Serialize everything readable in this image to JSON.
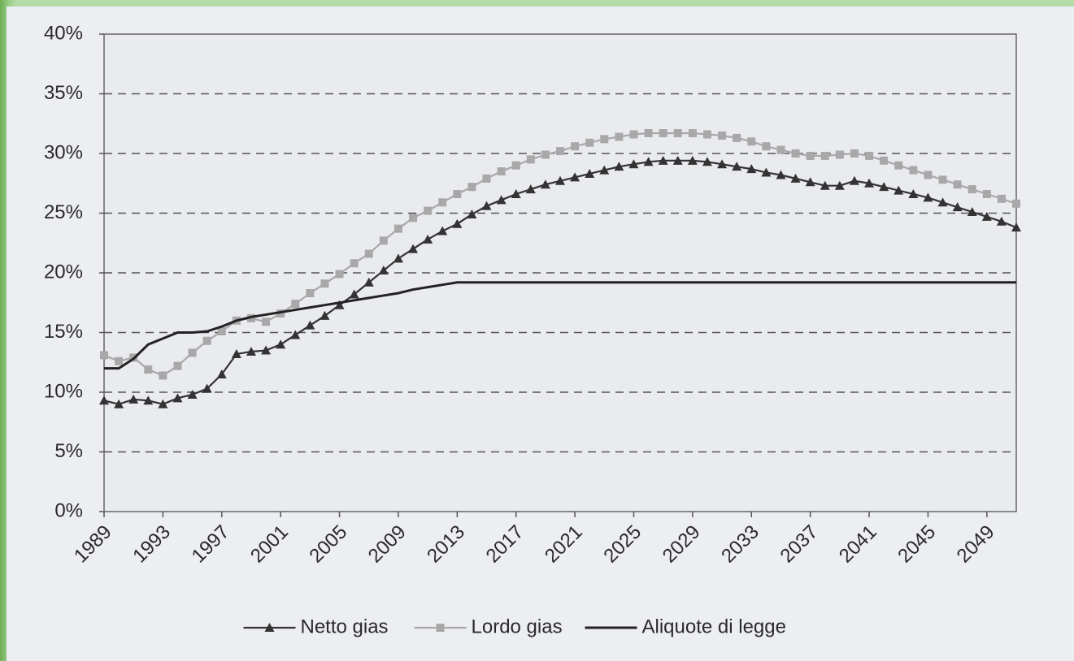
{
  "chart_data": {
    "type": "line",
    "x": [
      1989,
      1990,
      1991,
      1992,
      1993,
      1994,
      1995,
      1996,
      1997,
      1998,
      1999,
      2000,
      2001,
      2002,
      2003,
      2004,
      2005,
      2006,
      2007,
      2008,
      2009,
      2010,
      2011,
      2012,
      2013,
      2014,
      2015,
      2016,
      2017,
      2018,
      2019,
      2020,
      2021,
      2022,
      2023,
      2024,
      2025,
      2026,
      2027,
      2028,
      2029,
      2030,
      2031,
      2032,
      2033,
      2034,
      2035,
      2036,
      2037,
      2038,
      2039,
      2040,
      2041,
      2042,
      2043,
      2044,
      2045,
      2046,
      2047,
      2048,
      2049,
      2050,
      2051
    ],
    "series": [
      {
        "name": "Netto gias",
        "color": "#333333",
        "marker": "triangle",
        "values": [
          9.3,
          9.0,
          9.4,
          9.3,
          9.0,
          9.5,
          9.8,
          10.3,
          11.5,
          13.2,
          13.4,
          13.5,
          14.0,
          14.8,
          15.6,
          16.4,
          17.3,
          18.2,
          19.2,
          20.2,
          21.2,
          22.0,
          22.8,
          23.5,
          24.1,
          24.9,
          25.6,
          26.1,
          26.6,
          27.0,
          27.4,
          27.7,
          28.0,
          28.3,
          28.6,
          28.9,
          29.1,
          29.3,
          29.4,
          29.4,
          29.4,
          29.3,
          29.1,
          28.9,
          28.7,
          28.4,
          28.2,
          27.9,
          27.6,
          27.3,
          27.3,
          27.7,
          27.5,
          27.2,
          26.9,
          26.6,
          26.3,
          25.9,
          25.5,
          25.1,
          24.7,
          24.3,
          23.8
        ]
      },
      {
        "name": "Lordo gias",
        "color": "#a8a8a8",
        "marker": "square",
        "values": [
          13.1,
          12.6,
          12.9,
          11.9,
          11.4,
          12.2,
          13.3,
          14.3,
          15.1,
          16.0,
          16.2,
          15.9,
          16.6,
          17.4,
          18.3,
          19.1,
          19.9,
          20.8,
          21.6,
          22.7,
          23.7,
          24.6,
          25.2,
          25.9,
          26.6,
          27.2,
          27.9,
          28.5,
          29.0,
          29.5,
          29.9,
          30.2,
          30.6,
          30.9,
          31.2,
          31.4,
          31.6,
          31.7,
          31.7,
          31.7,
          31.7,
          31.6,
          31.5,
          31.3,
          31.0,
          30.6,
          30.3,
          30.0,
          29.8,
          29.8,
          29.9,
          30.0,
          29.8,
          29.4,
          29.0,
          28.6,
          28.2,
          27.8,
          27.4,
          27.0,
          26.6,
          26.2,
          25.8
        ]
      },
      {
        "name": "Aliquote di legge",
        "color": "#222222",
        "marker": "none",
        "values": [
          12.0,
          12.0,
          12.8,
          14.0,
          14.5,
          15.0,
          15.0,
          15.1,
          15.5,
          16.0,
          16.3,
          16.5,
          16.7,
          16.9,
          17.1,
          17.3,
          17.5,
          17.7,
          17.9,
          18.1,
          18.3,
          18.6,
          18.8,
          19.0,
          19.2,
          19.2,
          19.2,
          19.2,
          19.2,
          19.2,
          19.2,
          19.2,
          19.2,
          19.2,
          19.2,
          19.2,
          19.2,
          19.2,
          19.2,
          19.2,
          19.2,
          19.2,
          19.2,
          19.2,
          19.2,
          19.2,
          19.2,
          19.2,
          19.2,
          19.2,
          19.2,
          19.2,
          19.2,
          19.2,
          19.2,
          19.2,
          19.2,
          19.2,
          19.2,
          19.2,
          19.2,
          19.2,
          19.2
        ]
      }
    ],
    "xlim": [
      1989,
      2051
    ],
    "xticks": [
      1989,
      1993,
      1997,
      2001,
      2005,
      2009,
      2013,
      2017,
      2021,
      2025,
      2029,
      2033,
      2037,
      2041,
      2045,
      2049
    ],
    "ylim": [
      0,
      40
    ],
    "yticks": [
      {
        "value": 0,
        "label": "0%"
      },
      {
        "value": 5,
        "label": "5%"
      },
      {
        "value": 10,
        "label": "10%"
      },
      {
        "value": 15,
        "label": "15%"
      },
      {
        "value": 20,
        "label": "20%"
      },
      {
        "value": 25,
        "label": "25%"
      },
      {
        "value": 30,
        "label": "30%"
      },
      {
        "value": 35,
        "label": "35%"
      },
      {
        "value": 40,
        "label": "40%"
      }
    ],
    "grid": true,
    "legend": "bottom"
  }
}
